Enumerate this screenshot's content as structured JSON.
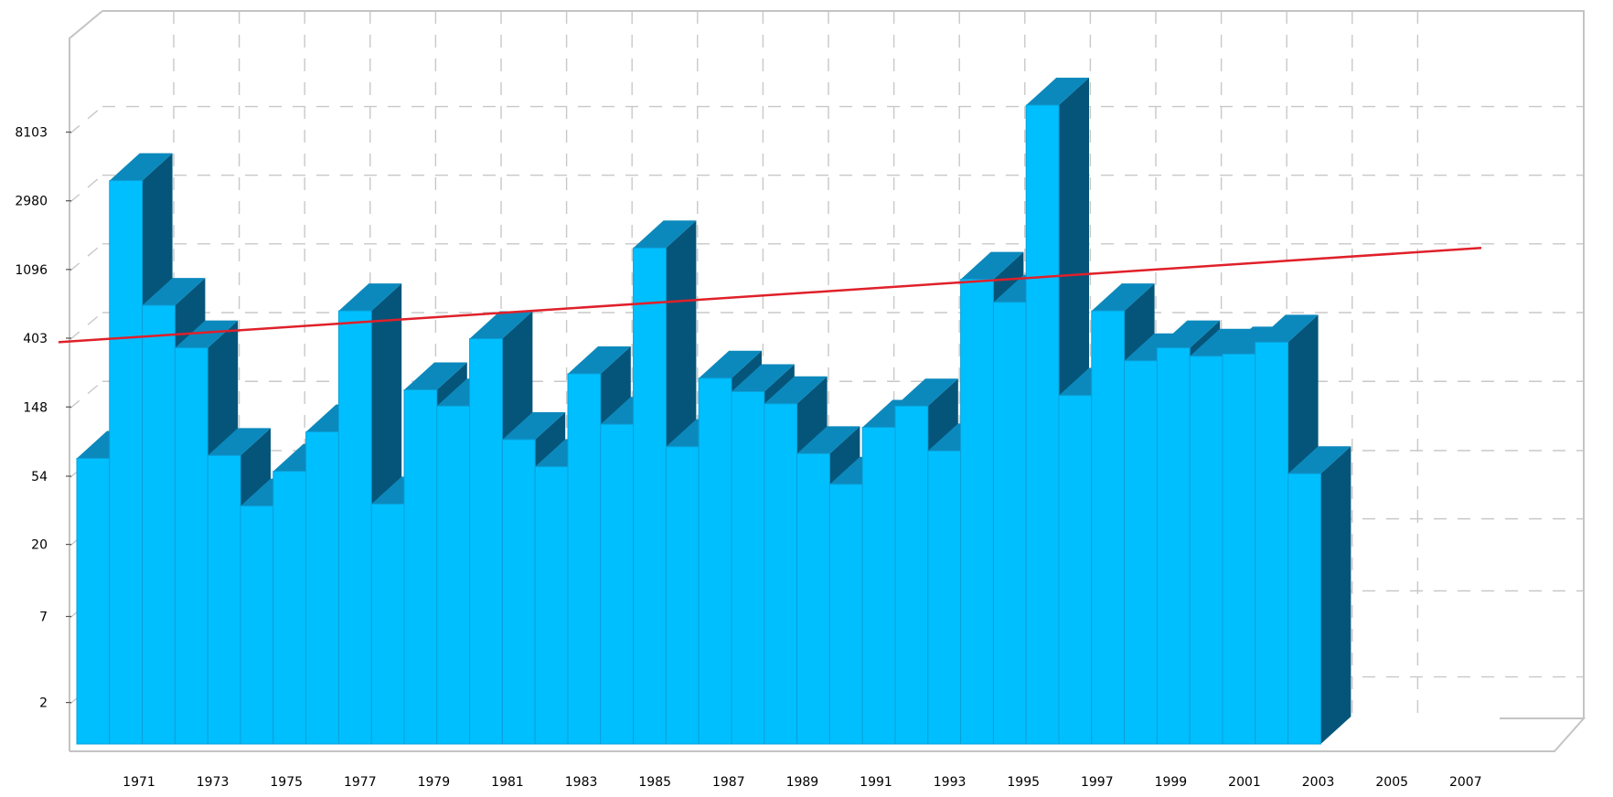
{
  "chart_data": {
    "type": "bar",
    "title": "",
    "xlabel": "",
    "ylabel": "",
    "y_scale": "log",
    "ylim": [
      0.7,
      22000
    ],
    "grid": true,
    "legend": "none",
    "colors": {
      "bar_front": "#00bfff",
      "bar_top": "#0b89bd",
      "bar_side": "#05557a",
      "trend": "#e0202a",
      "grid": "#c8c8c8"
    },
    "y_ticks": [
      2,
      7,
      20,
      54,
      148,
      403,
      1096,
      2980,
      8103
    ],
    "y_tick_labels": [
      "2",
      "7",
      "20",
      "54",
      "148",
      "403",
      "1096",
      "2980",
      "8103"
    ],
    "x_tick_labels": [
      "1971",
      "1973",
      "1975",
      "1977",
      "1979",
      "1981",
      "1983",
      "1985",
      "1987",
      "1989",
      "1991",
      "1993",
      "1995",
      "1997",
      "1999",
      "2001",
      "2003",
      "2005",
      "2007"
    ],
    "categories": [
      "1970",
      "1971",
      "1972",
      "1973",
      "1974",
      "1975",
      "1976",
      "1977",
      "1978",
      "1979",
      "1980",
      "1981",
      "1982",
      "1983",
      "1984",
      "1985",
      "1986",
      "1987",
      "1988",
      "1989",
      "1990",
      "1991",
      "1992",
      "1993",
      "1994",
      "1995",
      "1996",
      "1997",
      "1998",
      "1999",
      "2000",
      "2001",
      "2002",
      "2003",
      "2004",
      "2005",
      "2006",
      "2007"
    ],
    "series": [
      {
        "values": [
          70,
          4000,
          650,
          350,
          73,
          35,
          58,
          103,
          600,
          36,
          190,
          150,
          400,
          92,
          62,
          240,
          115,
          1500,
          83,
          225,
          185,
          155,
          75,
          48,
          110,
          150,
          78,
          950,
          680,
          12000,
          175,
          600,
          290,
          350,
          310,
          320,
          380,
          56
        ]
      }
    ],
    "trend_line": {
      "from": {
        "x": "1970",
        "y": 380
      },
      "to": {
        "x": "2008",
        "y": 1500
      }
    }
  }
}
